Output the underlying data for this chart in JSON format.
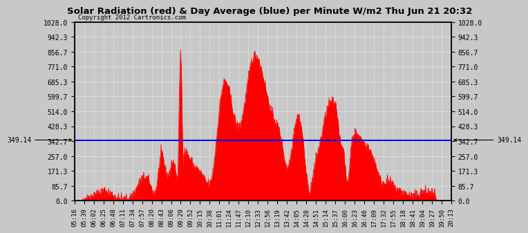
{
  "title": "Solar Radiation (red) & Day Average (blue) per Minute W/m2 Thu Jun 21 20:32",
  "copyright": "Copyright 2012 Cartronics.com",
  "ymin": 0.0,
  "ymax": 1028.0,
  "ytick_vals": [
    0.0,
    85.7,
    171.3,
    257.0,
    342.7,
    428.3,
    514.0,
    599.7,
    685.3,
    771.0,
    856.7,
    942.3,
    1028.0
  ],
  "day_average": 349.14,
  "fill_color": "red",
  "line_color": "blue",
  "bg_color": "#c8c8c8",
  "xtick_labels": [
    "05:16",
    "05:39",
    "06:02",
    "06:25",
    "06:48",
    "07:11",
    "07:34",
    "07:57",
    "08:20",
    "08:43",
    "09:06",
    "09:29",
    "09:52",
    "10:15",
    "10:38",
    "11:01",
    "11:24",
    "11:47",
    "12:10",
    "12:33",
    "12:56",
    "13:19",
    "13:42",
    "14:05",
    "14:28",
    "14:51",
    "15:14",
    "15:37",
    "16:00",
    "16:23",
    "16:46",
    "17:09",
    "17:32",
    "17:55",
    "18:18",
    "18:41",
    "19:04",
    "19:27",
    "19:50",
    "20:13"
  ],
  "n_points": 910
}
